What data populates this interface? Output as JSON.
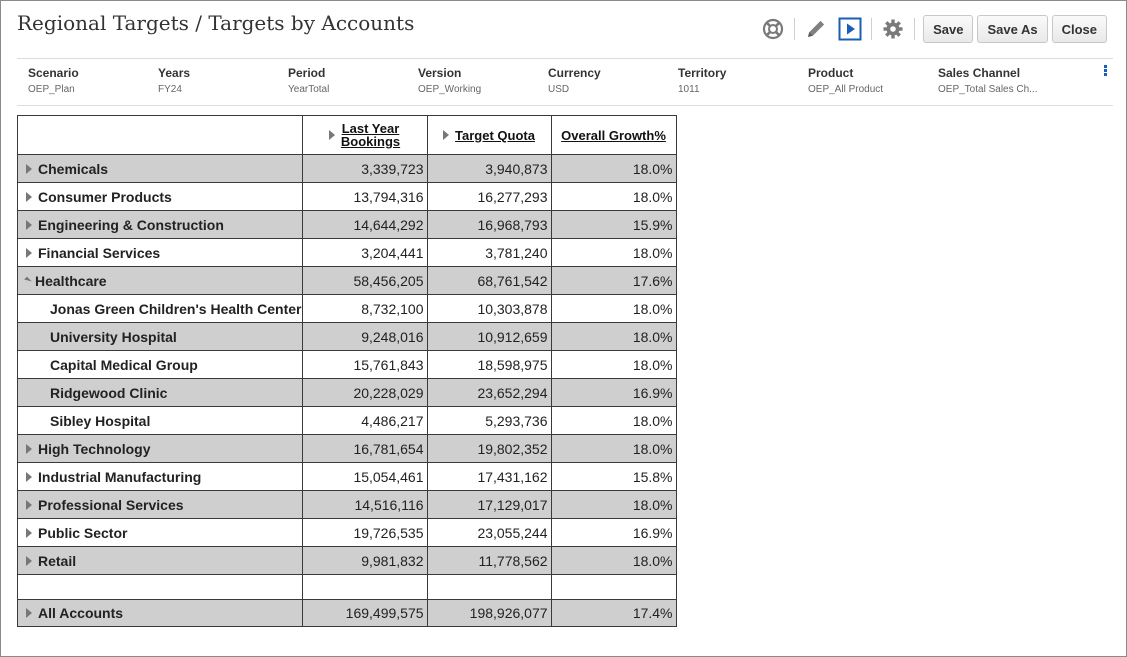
{
  "page": {
    "title": "Regional Targets / Targets by Accounts"
  },
  "toolbar": {
    "icons": [
      "lifebuoy-icon",
      "pencil-icon",
      "play-icon",
      "gear-icon"
    ],
    "save_label": "Save",
    "save_as_label": "Save As",
    "close_label": "Close"
  },
  "pov": [
    {
      "label": "Scenario",
      "value": "OEP_Plan"
    },
    {
      "label": "Years",
      "value": "FY24"
    },
    {
      "label": "Period",
      "value": "YearTotal"
    },
    {
      "label": "Version",
      "value": "OEP_Working"
    },
    {
      "label": "Currency",
      "value": "USD"
    },
    {
      "label": "Territory",
      "value": "1011"
    },
    {
      "label": "Product",
      "value": "OEP_All Product"
    },
    {
      "label": "Sales Channel",
      "value": "OEP_Total Sales Ch..."
    }
  ],
  "grid": {
    "columns": [
      {
        "line1": "Last Year",
        "line2": "Bookings",
        "expandable": true
      },
      {
        "line1": "Target Quota",
        "expandable": true
      },
      {
        "line1": "Overall Growth%",
        "expandable": false
      }
    ],
    "rows": [
      {
        "label": "Chemicals",
        "level": 0,
        "toggle": "collapsed",
        "values": [
          "3,339,723",
          "3,940,873",
          "18.0%"
        ]
      },
      {
        "label": "Consumer Products",
        "level": 0,
        "toggle": "collapsed",
        "values": [
          "13,794,316",
          "16,277,293",
          "18.0%"
        ]
      },
      {
        "label": "Engineering & Construction",
        "level": 0,
        "toggle": "collapsed",
        "values": [
          "14,644,292",
          "16,968,793",
          "15.9%"
        ]
      },
      {
        "label": "Financial Services",
        "level": 0,
        "toggle": "collapsed",
        "values": [
          "3,204,441",
          "3,781,240",
          "18.0%"
        ]
      },
      {
        "label": "Healthcare",
        "level": 0,
        "toggle": "expanded",
        "values": [
          "58,456,205",
          "68,761,542",
          "17.6%"
        ]
      },
      {
        "label": "Jonas Green Children's Health Center",
        "level": 1,
        "toggle": "none",
        "values": [
          "8,732,100",
          "10,303,878",
          "18.0%"
        ]
      },
      {
        "label": "University Hospital",
        "level": 1,
        "toggle": "none",
        "values": [
          "9,248,016",
          "10,912,659",
          "18.0%"
        ]
      },
      {
        "label": "Capital Medical Group",
        "level": 1,
        "toggle": "none",
        "values": [
          "15,761,843",
          "18,598,975",
          "18.0%"
        ]
      },
      {
        "label": "Ridgewood Clinic",
        "level": 1,
        "toggle": "none",
        "values": [
          "20,228,029",
          "23,652,294",
          "16.9%"
        ]
      },
      {
        "label": "Sibley Hospital",
        "level": 1,
        "toggle": "none",
        "values": [
          "4,486,217",
          "5,293,736",
          "18.0%"
        ]
      },
      {
        "label": "High Technology",
        "level": 0,
        "toggle": "collapsed",
        "values": [
          "16,781,654",
          "19,802,352",
          "18.0%"
        ]
      },
      {
        "label": "Industrial Manufacturing",
        "level": 0,
        "toggle": "collapsed",
        "values": [
          "15,054,461",
          "17,431,162",
          "15.8%"
        ]
      },
      {
        "label": "Professional Services",
        "level": 0,
        "toggle": "collapsed",
        "values": [
          "14,516,116",
          "17,129,017",
          "18.0%"
        ]
      },
      {
        "label": "Public Sector",
        "level": 0,
        "toggle": "collapsed",
        "values": [
          "19,726,535",
          "23,055,244",
          "16.9%"
        ]
      },
      {
        "label": "Retail",
        "level": 0,
        "toggle": "collapsed",
        "values": [
          "9,981,832",
          "11,778,562",
          "18.0%"
        ]
      }
    ],
    "total": {
      "label": "All Accounts",
      "toggle": "collapsed",
      "values": [
        "169,499,575",
        "198,926,077",
        "17.4%"
      ]
    }
  }
}
